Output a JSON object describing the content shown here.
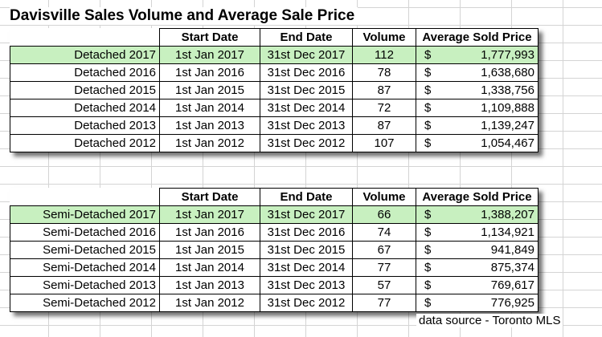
{
  "title": "Davisville Sales Volume and Average Sale Price",
  "headers": {
    "start": "Start Date",
    "end": "End Date",
    "volume": "Volume",
    "price": "Average Sold Price"
  },
  "currency_symbol": "$",
  "highlight_color": "#c8f0c0",
  "detached": [
    {
      "label": "Detached 2017",
      "start": "1st Jan 2017",
      "end": "31st Dec 2017",
      "volume": "112",
      "price": "1,777,993"
    },
    {
      "label": "Detached 2016",
      "start": "1st Jan 2016",
      "end": "31st Dec 2016",
      "volume": "78",
      "price": "1,638,680"
    },
    {
      "label": "Detached 2015",
      "start": "1st Jan 2015",
      "end": "31st Dec 2015",
      "volume": "87",
      "price": "1,338,756"
    },
    {
      "label": "Detached 2014",
      "start": "1st Jan 2014",
      "end": "31st Dec 2014",
      "volume": "72",
      "price": "1,109,888"
    },
    {
      "label": "Detached 2013",
      "start": "1st Jan 2013",
      "end": "31st Dec 2013",
      "volume": "87",
      "price": "1,139,247"
    },
    {
      "label": "Detached 2012",
      "start": "1st Jan 2012",
      "end": "31st Dec 2012",
      "volume": "107",
      "price": "1,054,467"
    }
  ],
  "semi_detached": [
    {
      "label": "Semi-Detached 2017",
      "start": "1st Jan 2017",
      "end": "31st Dec 2017",
      "volume": "66",
      "price": "1,388,207"
    },
    {
      "label": "Semi-Detached 2016",
      "start": "1st Jan 2016",
      "end": "31st Dec 2016",
      "volume": "74",
      "price": "1,134,921"
    },
    {
      "label": "Semi-Detached 2015",
      "start": "1st Jan 2015",
      "end": "31st Dec 2015",
      "volume": "67",
      "price": "941,849"
    },
    {
      "label": "Semi-Detached 2014",
      "start": "1st Jan 2014",
      "end": "31st Dec 2014",
      "volume": "77",
      "price": "875,374"
    },
    {
      "label": "Semi-Detached 2013",
      "start": "1st Jan 2013",
      "end": "31st Dec 2013",
      "volume": "57",
      "price": "769,617"
    },
    {
      "label": "Semi-Detached 2012",
      "start": "1st Jan 2012",
      "end": "31st Dec 2012",
      "volume": "77",
      "price": "776,925"
    }
  ],
  "source_note": "data source  - Toronto MLS"
}
